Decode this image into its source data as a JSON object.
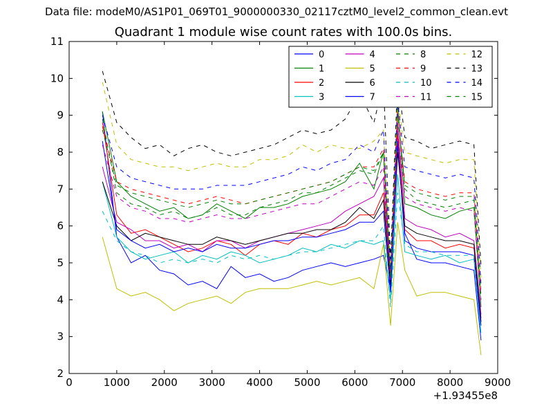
{
  "figure": {
    "suptitle": "Data file: modeM0/AS1P01_069T01_9000000330_02117cztM0_level2_common_clean.evt"
  },
  "chart_data": {
    "type": "line",
    "title": "Quadrant 1 module wise count rates with 100.0s bins.",
    "xlabel": "",
    "ylabel": "",
    "xlim": [
      0,
      9000
    ],
    "ylim": [
      2,
      11
    ],
    "x_offset_label": "+1.93455e8",
    "x_ticks": [
      0,
      1000,
      2000,
      3000,
      4000,
      5000,
      6000,
      7000,
      8000,
      9000
    ],
    "y_ticks": [
      2,
      3,
      4,
      5,
      6,
      7,
      8,
      9,
      10,
      11
    ],
    "grid": false,
    "legend_position": "top-right",
    "series": [
      {
        "name": "0",
        "color": "#0000ff",
        "dash": "solid",
        "x": [
          700,
          1000,
          1300,
          1600,
          1900,
          2200,
          2500,
          2800,
          3100,
          3400,
          3700,
          4000,
          4300,
          4600,
          4900,
          5200,
          5500,
          5800,
          6100,
          6400,
          6600,
          6750,
          6900,
          7050,
          7300,
          7600,
          7900,
          8200,
          8500,
          8650
        ],
        "y": [
          9.1,
          5.7,
          5.0,
          5.2,
          4.8,
          4.7,
          4.4,
          4.5,
          4.3,
          4.9,
          4.6,
          4.7,
          4.5,
          4.6,
          4.8,
          4.9,
          5.0,
          4.9,
          5.0,
          5.1,
          5.2,
          4.3,
          8.2,
          5.8,
          5.1,
          5.0,
          5.0,
          4.9,
          4.8,
          2.9
        ]
      },
      {
        "name": "1",
        "color": "#008000",
        "dash": "solid",
        "x": [
          700,
          1000,
          1300,
          1600,
          1900,
          2200,
          2500,
          2800,
          3100,
          3400,
          3700,
          4000,
          4300,
          4600,
          4900,
          5200,
          5500,
          5800,
          6100,
          6400,
          6600,
          6750,
          6900,
          7050,
          7300,
          7600,
          7900,
          8200,
          8500,
          8650
        ],
        "y": [
          9.1,
          7.2,
          6.8,
          6.6,
          6.4,
          6.5,
          6.2,
          6.3,
          6.6,
          6.4,
          6.2,
          6.5,
          6.5,
          6.6,
          6.8,
          6.9,
          7.0,
          7.2,
          7.7,
          7.0,
          8.0,
          4.4,
          9.3,
          6.6,
          6.5,
          6.3,
          6.2,
          6.4,
          6.5,
          3.8
        ]
      },
      {
        "name": "2",
        "color": "#ff0000",
        "dash": "solid",
        "x": [
          700,
          1000,
          1300,
          1600,
          1900,
          2200,
          2500,
          2800,
          3100,
          3400,
          3700,
          4000,
          4300,
          4600,
          4900,
          5200,
          5500,
          5800,
          6100,
          6400,
          6600,
          6750,
          6900,
          7050,
          7300,
          7600,
          7900,
          8200,
          8500,
          8650
        ],
        "y": [
          8.8,
          6.3,
          5.8,
          5.9,
          5.7,
          5.5,
          5.3,
          5.4,
          5.6,
          5.5,
          5.2,
          5.5,
          5.6,
          5.5,
          5.8,
          5.7,
          5.9,
          6.0,
          6.3,
          6.3,
          6.9,
          4.5,
          8.5,
          5.9,
          5.6,
          5.6,
          5.4,
          5.5,
          5.4,
          3.5
        ]
      },
      {
        "name": "3",
        "color": "#00bfbf",
        "dash": "solid",
        "x": [
          700,
          1000,
          1300,
          1600,
          1900,
          2200,
          2500,
          2800,
          3100,
          3400,
          3700,
          4000,
          4300,
          4600,
          4900,
          5200,
          5500,
          5800,
          6100,
          6400,
          6600,
          6750,
          6900,
          7050,
          7300,
          7600,
          7900,
          8200,
          8500,
          8650
        ],
        "y": [
          7.2,
          5.7,
          5.3,
          5.1,
          5.2,
          5.3,
          5.0,
          5.2,
          5.1,
          5.3,
          5.2,
          5.0,
          5.1,
          5.2,
          5.4,
          5.3,
          5.5,
          5.4,
          5.6,
          5.5,
          5.6,
          4.0,
          7.4,
          5.3,
          5.2,
          5.1,
          5.2,
          5.0,
          5.1,
          3.1
        ]
      },
      {
        "name": "4",
        "color": "#bf00bf",
        "dash": "solid",
        "x": [
          700,
          1000,
          1300,
          1600,
          1900,
          2200,
          2500,
          2800,
          3100,
          3400,
          3700,
          4000,
          4300,
          4600,
          4900,
          5200,
          5500,
          5800,
          6100,
          6400,
          6600,
          6750,
          6900,
          7050,
          7300,
          7600,
          7900,
          8200,
          8500,
          8650
        ],
        "y": [
          7.6,
          6.1,
          5.9,
          5.6,
          5.6,
          5.4,
          5.5,
          5.3,
          5.6,
          5.6,
          5.4,
          5.6,
          5.7,
          5.8,
          5.9,
          6.0,
          6.1,
          6.4,
          6.6,
          6.8,
          7.3,
          4.4,
          8.8,
          6.2,
          6.0,
          5.9,
          5.7,
          5.8,
          5.6,
          3.6
        ]
      },
      {
        "name": "5",
        "color": "#bfbf00",
        "dash": "solid",
        "x": [
          700,
          1000,
          1300,
          1600,
          1900,
          2200,
          2500,
          2800,
          3100,
          3400,
          3700,
          4000,
          4300,
          4600,
          4900,
          5200,
          5500,
          5800,
          6100,
          6400,
          6600,
          6750,
          6900,
          7050,
          7300,
          7600,
          7900,
          8200,
          8500,
          8650
        ],
        "y": [
          5.7,
          4.3,
          4.1,
          4.2,
          4.0,
          3.7,
          3.9,
          4.0,
          4.1,
          3.9,
          4.2,
          4.3,
          4.3,
          4.3,
          4.4,
          4.5,
          4.4,
          4.5,
          4.6,
          4.3,
          5.5,
          3.3,
          6.1,
          4.8,
          4.1,
          4.2,
          4.2,
          4.1,
          4.0,
          2.5
        ]
      },
      {
        "name": "6",
        "color": "#000000",
        "dash": "solid",
        "x": [
          700,
          1000,
          1300,
          1600,
          1900,
          2200,
          2500,
          2800,
          3100,
          3400,
          3700,
          4000,
          4300,
          4600,
          4900,
          5200,
          5500,
          5800,
          6100,
          6400,
          6600,
          6750,
          6900,
          7050,
          7300,
          7600,
          7900,
          8200,
          8500,
          8650
        ],
        "y": [
          7.2,
          6.0,
          5.6,
          5.8,
          5.7,
          5.6,
          5.5,
          5.5,
          5.7,
          5.6,
          5.5,
          5.6,
          5.7,
          5.8,
          5.8,
          5.9,
          5.9,
          6.1,
          6.5,
          6.2,
          6.7,
          4.4,
          8.0,
          6.0,
          5.8,
          5.7,
          5.6,
          5.6,
          5.5,
          3.4
        ]
      },
      {
        "name": "7",
        "color": "#0000ff",
        "dash": "solid",
        "x": [
          700,
          1000,
          1300,
          1600,
          1900,
          2200,
          2500,
          2800,
          3100,
          3400,
          3700,
          4000,
          4300,
          4600,
          4900,
          5200,
          5500,
          5800,
          6100,
          6400,
          6600,
          6750,
          6900,
          7050,
          7300,
          7600,
          7900,
          8200,
          8500,
          8650
        ],
        "y": [
          8.3,
          5.9,
          5.6,
          5.4,
          5.5,
          5.3,
          5.4,
          5.3,
          5.5,
          5.4,
          5.4,
          5.5,
          5.6,
          5.6,
          5.7,
          5.7,
          5.8,
          5.9,
          6.1,
          6.1,
          6.4,
          4.2,
          8.3,
          5.6,
          5.4,
          5.3,
          5.3,
          5.3,
          5.2,
          3.3
        ]
      },
      {
        "name": "8",
        "color": "#008000",
        "dash": "dashed",
        "x": [
          700,
          1000,
          1300,
          1600,
          1900,
          2200,
          2500,
          2800,
          3100,
          3400,
          3700,
          4000,
          4300,
          4600,
          4900,
          5200,
          5500,
          5800,
          6100,
          6400,
          6600,
          6750,
          6900,
          7050,
          7300,
          7600,
          7900,
          8200,
          8500,
          8650
        ],
        "y": [
          8.9,
          6.9,
          6.6,
          6.5,
          6.3,
          6.4,
          6.2,
          6.3,
          6.5,
          6.3,
          6.3,
          6.5,
          6.6,
          6.7,
          6.9,
          6.9,
          7.1,
          7.3,
          7.5,
          7.4,
          8.0,
          4.6,
          9.2,
          7.0,
          6.7,
          6.6,
          6.5,
          6.6,
          6.7,
          4.0
        ]
      },
      {
        "name": "9",
        "color": "#ff0000",
        "dash": "dashed",
        "x": [
          700,
          1000,
          1300,
          1600,
          1900,
          2200,
          2500,
          2800,
          3100,
          3400,
          3700,
          4000,
          4300,
          4600,
          4900,
          5200,
          5500,
          5800,
          6100,
          6400,
          6600,
          6750,
          6900,
          7050,
          7300,
          7600,
          7900,
          8200,
          8500,
          8650
        ],
        "y": [
          8.7,
          7.2,
          7.0,
          6.9,
          6.8,
          6.7,
          6.6,
          6.7,
          6.8,
          6.7,
          6.6,
          6.7,
          6.8,
          6.9,
          7.0,
          7.1,
          7.2,
          7.4,
          7.6,
          7.6,
          8.1,
          4.7,
          9.1,
          7.2,
          7.0,
          6.9,
          6.8,
          6.9,
          6.9,
          4.2
        ]
      },
      {
        "name": "10",
        "color": "#00bfbf",
        "dash": "dashed",
        "x": [
          700,
          1000,
          1300,
          1600,
          1900,
          2200,
          2500,
          2800,
          3100,
          3400,
          3700,
          4000,
          4300,
          4600,
          4900,
          5200,
          5500,
          5800,
          6100,
          6400,
          6600,
          6750,
          6900,
          7050,
          7300,
          7600,
          7900,
          8200,
          8500,
          8650
        ],
        "y": [
          6.4,
          5.6,
          5.3,
          5.2,
          5.0,
          5.1,
          5.0,
          5.1,
          5.0,
          5.2,
          5.1,
          5.2,
          5.1,
          5.2,
          5.3,
          5.3,
          5.4,
          5.5,
          5.6,
          5.6,
          6.0,
          3.8,
          6.9,
          5.5,
          5.3,
          5.3,
          5.2,
          5.2,
          5.2,
          3.0
        ]
      },
      {
        "name": "11",
        "color": "#bf00bf",
        "dash": "dashed",
        "x": [
          700,
          1000,
          1300,
          1600,
          1900,
          2200,
          2500,
          2800,
          3100,
          3400,
          3700,
          4000,
          4300,
          4600,
          4900,
          5200,
          5500,
          5800,
          6100,
          6400,
          6600,
          6750,
          6900,
          7050,
          7300,
          7600,
          7900,
          8200,
          8500,
          8650
        ],
        "y": [
          8.2,
          6.8,
          6.5,
          6.4,
          6.2,
          6.2,
          6.1,
          6.2,
          6.3,
          6.2,
          6.2,
          6.3,
          6.4,
          6.5,
          6.6,
          6.6,
          6.8,
          7.0,
          7.2,
          7.1,
          7.6,
          4.5,
          8.6,
          6.8,
          6.6,
          6.5,
          6.4,
          6.5,
          6.4,
          3.9
        ]
      },
      {
        "name": "12",
        "color": "#bfbf00",
        "dash": "dashed",
        "x": [
          700,
          1000,
          1300,
          1600,
          1900,
          2200,
          2500,
          2800,
          3100,
          3400,
          3700,
          4000,
          4300,
          4600,
          4900,
          5200,
          5500,
          5800,
          6100,
          6400,
          6600,
          6750,
          6900,
          7050,
          7300,
          7600,
          7900,
          8200,
          8500,
          8650
        ],
        "y": [
          9.9,
          8.2,
          7.8,
          7.7,
          7.6,
          7.6,
          7.5,
          7.6,
          7.7,
          7.6,
          7.6,
          7.8,
          7.8,
          7.9,
          8.2,
          8.0,
          8.2,
          8.1,
          8.1,
          8.3,
          8.6,
          4.9,
          9.5,
          8.0,
          7.9,
          7.8,
          7.7,
          7.8,
          7.8,
          4.6
        ]
      },
      {
        "name": "13",
        "color": "#000000",
        "dash": "dashed",
        "x": [
          700,
          1000,
          1300,
          1600,
          1900,
          2200,
          2500,
          2800,
          3100,
          3400,
          3700,
          4000,
          4300,
          4600,
          4900,
          5200,
          5500,
          5800,
          6100,
          6400,
          6600,
          6750,
          6900,
          7050,
          7300,
          7600,
          7900,
          8200,
          8500,
          8650
        ],
        "y": [
          10.2,
          8.8,
          8.4,
          8.1,
          8.2,
          7.9,
          8.1,
          8.2,
          8.0,
          7.9,
          8.0,
          8.1,
          8.2,
          8.4,
          8.6,
          8.5,
          8.6,
          8.9,
          9.6,
          8.8,
          9.9,
          5.1,
          10.0,
          8.4,
          8.3,
          8.1,
          8.2,
          8.3,
          8.2,
          4.9
        ]
      },
      {
        "name": "14",
        "color": "#0000ff",
        "dash": "dashed",
        "x": [
          700,
          1000,
          1300,
          1600,
          1900,
          2200,
          2500,
          2800,
          3100,
          3400,
          3700,
          4000,
          4300,
          4600,
          4900,
          5200,
          5500,
          5800,
          6100,
          6400,
          6600,
          6750,
          6900,
          7050,
          7300,
          7600,
          7900,
          8200,
          8500,
          8650
        ],
        "y": [
          9.0,
          7.6,
          7.3,
          7.2,
          7.1,
          7.0,
          7.0,
          7.0,
          7.1,
          7.1,
          7.1,
          7.2,
          7.3,
          7.4,
          7.6,
          7.5,
          7.7,
          7.8,
          8.2,
          8.0,
          8.6,
          4.8,
          9.4,
          7.6,
          7.5,
          7.4,
          7.3,
          7.4,
          7.3,
          4.4
        ]
      },
      {
        "name": "15",
        "color": "#008000",
        "dash": "dashed",
        "x": [
          700,
          1000,
          1300,
          1600,
          1900,
          2200,
          2500,
          2800,
          3100,
          3400,
          3700,
          4000,
          4300,
          4600,
          4900,
          5200,
          5500,
          5800,
          6100,
          6400,
          6600,
          6750,
          6900,
          7050,
          7300,
          7600,
          7900,
          8200,
          8500,
          8650
        ],
        "y": [
          8.6,
          7.1,
          6.9,
          6.8,
          6.7,
          6.6,
          6.5,
          6.6,
          6.7,
          6.6,
          6.6,
          6.7,
          6.8,
          6.9,
          7.0,
          7.1,
          7.2,
          7.4,
          7.6,
          7.5,
          8.0,
          4.6,
          9.0,
          7.1,
          6.9,
          6.8,
          6.7,
          6.8,
          6.8,
          4.1
        ]
      }
    ]
  }
}
